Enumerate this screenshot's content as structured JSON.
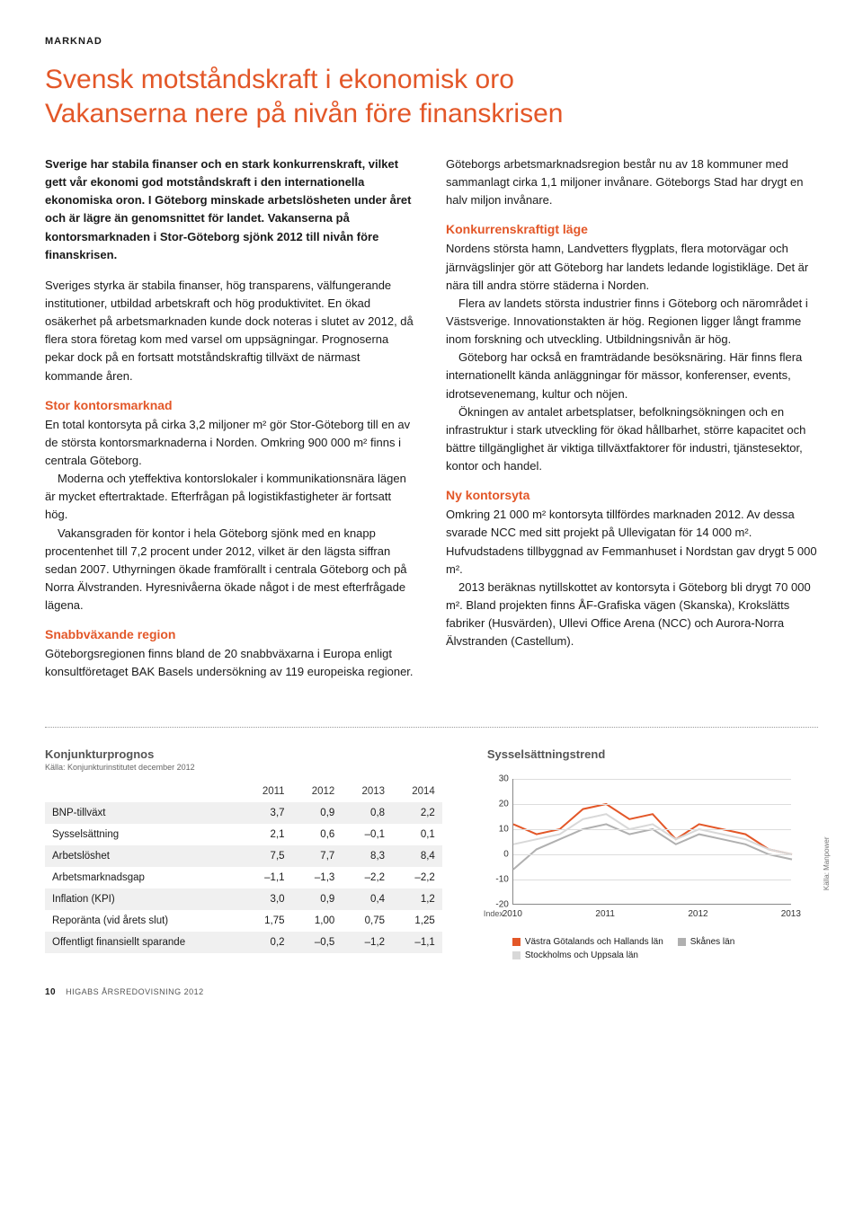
{
  "section_label": "MARKNAD",
  "title_line1": "Svensk motståndskraft i ekonomisk oro",
  "title_line2": "Vakanserna nere på nivån före finanskrisen",
  "left_col": {
    "lead": "Sverige har stabila finanser och en stark konkurrenskraft, vilket gett vår ekonomi god motståndskraft i den internationella ekonomiska oron. I Göteborg minskade arbetslösheten under året och är lägre än genomsnittet för landet. Vakanserna på kontorsmarknaden i Stor-Göteborg sjönk 2012 till nivån före finanskrisen.",
    "p1": "Sveriges styrka är stabila finanser, hög transparens, välfungerande institutioner, utbildad arbetskraft och hög produktivitet. En ökad osäkerhet på arbetsmarknaden kunde dock noteras i slutet av 2012, då flera stora företag kom med varsel om uppsägningar. Prognoserna pekar dock på en fortsatt motståndskraftig tillväxt de närmast kommande åren.",
    "h1": "Stor kontorsmarknad",
    "p2": "En total kontorsyta på cirka 3,2 miljoner m² gör Stor-Göteborg till en av de största kontorsmarknaderna i Norden. Omkring 900 000 m² finns i centrala Göteborg.",
    "p3": "Moderna och yteffektiva kontorslokaler i kommunikationsnära lägen är mycket eftertraktade. Efterfrågan på logistikfastigheter är fortsatt hög.",
    "p4": "Vakansgraden för kontor i hela Göteborg sjönk med en knapp procentenhet till 7,2 procent under 2012, vilket är den lägsta siffran sedan 2007. Uthyrningen ökade framförallt i centrala Göteborg och på Norra Älvstranden. Hyresnivåerna ökade något i de mest efterfrågade lägena.",
    "h2": "Snabbväxande region",
    "p5": "Göteborgsregionen finns bland de 20 snabbväxarna i Europa enligt konsultföretaget BAK Basels undersökning av 119 europeiska regioner."
  },
  "right_col": {
    "p0": "Göteborgs arbetsmarknadsregion består nu av 18 kommuner med sammanlagt cirka 1,1 miljoner invånare. Göteborgs Stad har drygt en halv miljon invånare.",
    "h1": "Konkurrenskraftigt läge",
    "p1": "Nordens största hamn, Landvetters flygplats, flera motorvägar och järnvägslinjer gör att Göteborg har landets ledande logistikläge. Det är nära till andra större städerna i Norden.",
    "p2": "Flera av landets största industrier finns i Göteborg och närområdet i Västsverige. Innovationstakten är hög. Regionen ligger långt framme inom forskning och utveckling. Utbildningsnivån är hög.",
    "p3": "Göteborg har också en framträdande besöksnäring. Här finns flera internationellt kända anläggningar för mässor, konferenser, events, idrotsevenemang, kultur och nöjen.",
    "p4": "Ökningen av antalet arbetsplatser, befolkningsökningen och en infrastruktur i stark utveckling för ökad hållbarhet, större kapacitet och bättre tillgänglighet är viktiga tillväxtfaktorer för industri, tjänstesektor, kontor och handel.",
    "h2": "Ny kontorsyta",
    "p5": "Omkring 21 000 m² kontorsyta tillfördes marknaden 2012. Av dessa svarade NCC med sitt projekt på Ullevigatan för 14 000 m². Hufvudstadens tillbyggnad av Femmanhuset i Nordstan gav drygt 5 000 m².",
    "p6": "2013 beräknas nytillskottet av kontorsyta i Göteborg bli drygt 70 000 m². Bland projekten finns ÅF-Grafiska vägen (Skanska), Krokslätts fabriker (Husvärden), Ullevi Office Arena (NCC) och Aurora-Norra Älvstranden (Castellum)."
  },
  "table": {
    "heading": "Konjunkturprognos",
    "source": "Källa: Konjunkturinstitutet december 2012",
    "columns": [
      "",
      "2011",
      "2012",
      "2013",
      "2014"
    ],
    "rows": [
      [
        "BNP-tillväxt",
        "3,7",
        "0,9",
        "0,8",
        "2,2"
      ],
      [
        "Sysselsättning",
        "2,1",
        "0,6",
        "–0,1",
        "0,1"
      ],
      [
        "Arbetslöshet",
        "7,5",
        "7,7",
        "8,3",
        "8,4"
      ],
      [
        "Arbetsmarknadsgap",
        "–1,1",
        "–1,3",
        "–2,2",
        "–2,2"
      ],
      [
        "Inflation (KPI)",
        "3,0",
        "0,9",
        "0,4",
        "1,2"
      ],
      [
        "Reporänta (vid årets slut)",
        "1,75",
        "1,00",
        "0,75",
        "1,25"
      ],
      [
        "Offentligt finansiellt sparande",
        "0,2",
        "–0,5",
        "–1,2",
        "–1,1"
      ]
    ]
  },
  "chart": {
    "heading": "Sysselsättningstrend",
    "type": "line",
    "ylim": [
      -20,
      30
    ],
    "ytick_step": 10,
    "yticks": [
      30,
      20,
      10,
      0,
      -10,
      -20
    ],
    "xlim": [
      2010,
      2013
    ],
    "xticks": [
      2010,
      2011,
      2012,
      2013
    ],
    "index_label": "Index",
    "source_label": "Källa: Manpower",
    "background_color": "#ffffff",
    "grid_color": "#dddddd",
    "axis_color": "#888888",
    "series": [
      {
        "name": "Västra Götalands och Hallands län",
        "color": "#e35728",
        "values": [
          {
            "x": 2010.0,
            "y": 12
          },
          {
            "x": 2010.25,
            "y": 8
          },
          {
            "x": 2010.5,
            "y": 10
          },
          {
            "x": 2010.75,
            "y": 18
          },
          {
            "x": 2011.0,
            "y": 20
          },
          {
            "x": 2011.25,
            "y": 14
          },
          {
            "x": 2011.5,
            "y": 16
          },
          {
            "x": 2011.75,
            "y": 6
          },
          {
            "x": 2012.0,
            "y": 12
          },
          {
            "x": 2012.25,
            "y": 10
          },
          {
            "x": 2012.5,
            "y": 8
          },
          {
            "x": 2012.75,
            "y": 2
          },
          {
            "x": 2013.0,
            "y": 0
          }
        ]
      },
      {
        "name": "Skånes län",
        "color": "#b0b0b0",
        "values": [
          {
            "x": 2010.0,
            "y": -6
          },
          {
            "x": 2010.25,
            "y": 2
          },
          {
            "x": 2010.5,
            "y": 6
          },
          {
            "x": 2010.75,
            "y": 10
          },
          {
            "x": 2011.0,
            "y": 12
          },
          {
            "x": 2011.25,
            "y": 8
          },
          {
            "x": 2011.5,
            "y": 10
          },
          {
            "x": 2011.75,
            "y": 4
          },
          {
            "x": 2012.0,
            "y": 8
          },
          {
            "x": 2012.25,
            "y": 6
          },
          {
            "x": 2012.5,
            "y": 4
          },
          {
            "x": 2012.75,
            "y": 0
          },
          {
            "x": 2013.0,
            "y": -2
          }
        ]
      },
      {
        "name": "Stockholms och Uppsala län",
        "color": "#d8d8d8",
        "values": [
          {
            "x": 2010.0,
            "y": 4
          },
          {
            "x": 2010.25,
            "y": 6
          },
          {
            "x": 2010.5,
            "y": 8
          },
          {
            "x": 2010.75,
            "y": 14
          },
          {
            "x": 2011.0,
            "y": 16
          },
          {
            "x": 2011.25,
            "y": 10
          },
          {
            "x": 2011.5,
            "y": 12
          },
          {
            "x": 2011.75,
            "y": 6
          },
          {
            "x": 2012.0,
            "y": 10
          },
          {
            "x": 2012.25,
            "y": 8
          },
          {
            "x": 2012.5,
            "y": 6
          },
          {
            "x": 2012.75,
            "y": 2
          },
          {
            "x": 2013.0,
            "y": 0
          }
        ]
      }
    ],
    "legend_items": [
      {
        "label": "Västra Götalands och Hallands län",
        "color": "#e35728"
      },
      {
        "label": "Skånes län",
        "color": "#b0b0b0"
      },
      {
        "label": "Stockholms och Uppsala län",
        "color": "#d8d8d8"
      }
    ]
  },
  "footer": {
    "page_num": "10",
    "text": "HIGABS ÅRSREDOVISNING 2012"
  }
}
